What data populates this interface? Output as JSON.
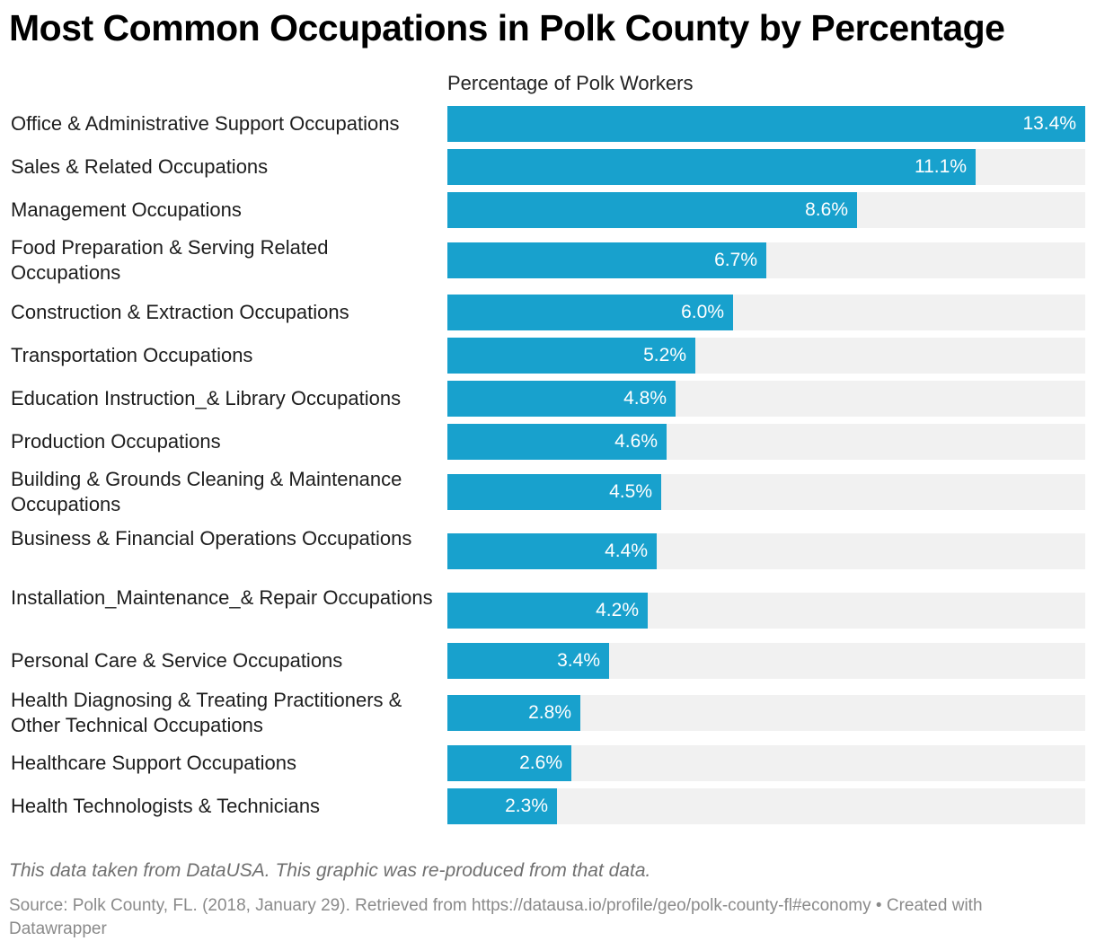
{
  "chart_data": {
    "type": "bar",
    "orientation": "horizontal",
    "title": "Most Common Occupations in Polk County by Percentage",
    "column_header": "Percentage of Polk Workers",
    "xlim": [
      0,
      13.4
    ],
    "value_suffix": "%",
    "categories": [
      "Office & Administrative Support Occupations",
      "Sales & Related Occupations",
      "Management Occupations",
      "Food Preparation & Serving Related Occupations",
      "Construction & Extraction Occupations",
      "Transportation Occupations",
      "Education Instruction_& Library Occupations",
      "Production Occupations",
      "Building & Grounds Cleaning & Maintenance Occupations",
      "Business & Financial Operations Occupations",
      "Installation_Maintenance_& Repair Occupations",
      "Personal Care & Service Occupations",
      "Health Diagnosing & Treating Practitioners & Other Technical Occupations",
      "Healthcare Support Occupations",
      "Health Technologists & Technicians"
    ],
    "values": [
      13.4,
      11.1,
      8.6,
      6.7,
      6.0,
      5.2,
      4.8,
      4.6,
      4.5,
      4.4,
      4.2,
      3.4,
      2.8,
      2.6,
      2.3
    ],
    "value_labels": [
      "13.4%",
      "11.1%",
      "8.6%",
      "6.7%",
      "6.0%",
      "5.2%",
      "4.8%",
      "4.6%",
      "4.5%",
      "4.4%",
      "4.2%",
      "3.4%",
      "2.8%",
      "2.6%",
      "2.3%"
    ]
  },
  "colors": {
    "bar": "#18a1cd",
    "track": "#f1f1f1"
  },
  "notes": {
    "description": "This data taken from DataUSA. This graphic was re-produced from that data.",
    "source": "Source: Polk County, FL. (2018, January 29). Retrieved from https://datausa.io/profile/geo/polk-county-fl#economy • Created with Datawrapper"
  }
}
